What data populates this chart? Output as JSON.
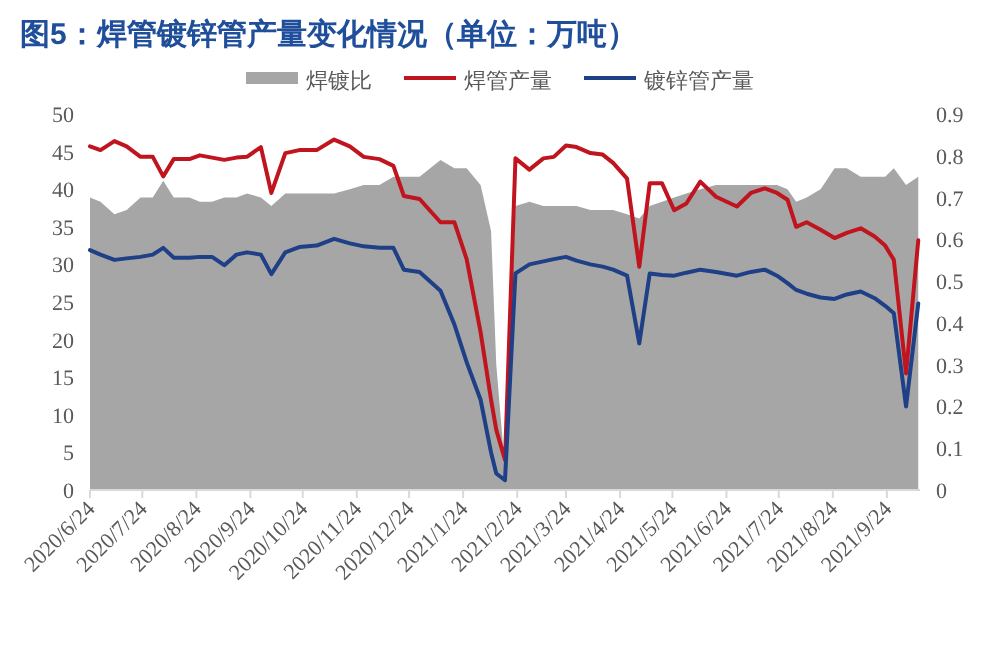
{
  "chart_data": {
    "type": "line",
    "title": "图5：焊管镀锌管产量变化情况（单位：万吨）",
    "legend": "top",
    "x": [
      "2020-06-24",
      "2020-06-30",
      "2020-07-08",
      "2020-07-15",
      "2020-07-23",
      "2020-07-30",
      "2020-08-05",
      "2020-08-11",
      "2020-08-20",
      "2020-08-26",
      "2020-09-02",
      "2020-09-09",
      "2020-09-16",
      "2020-09-22",
      "2020-09-30",
      "2020-10-06",
      "2020-10-14",
      "2020-10-22",
      "2020-11-01",
      "2020-11-11",
      "2020-11-20",
      "2020-11-28",
      "2020-12-07",
      "2020-12-15",
      "2020-12-21",
      "2020-12-30",
      "2021-01-11",
      "2021-01-19",
      "2021-01-26",
      "2021-02-03",
      "2021-02-09",
      "2021-02-12",
      "2021-02-17",
      "2021-02-23",
      "2021-03-03",
      "2021-03-11",
      "2021-03-17",
      "2021-03-24",
      "2021-03-30",
      "2021-04-07",
      "2021-04-14",
      "2021-04-20",
      "2021-04-28",
      "2021-05-05",
      "2021-05-11",
      "2021-05-18",
      "2021-05-25",
      "2021-06-01",
      "2021-06-09",
      "2021-06-18",
      "2021-06-30",
      "2021-07-08",
      "2021-07-16",
      "2021-07-23",
      "2021-07-29",
      "2021-08-03",
      "2021-08-09",
      "2021-08-17",
      "2021-08-25",
      "2021-09-01",
      "2021-09-09",
      "2021-09-17",
      "2021-09-23",
      "2021-09-28",
      "2021-10-05",
      "2021-10-12"
    ],
    "series": [
      {
        "name": "焊镀比",
        "type": "area",
        "axis": "y2",
        "color": "#a6a6a6",
        "values": [
          0.7,
          0.69,
          0.66,
          0.67,
          0.7,
          0.7,
          0.74,
          0.7,
          0.7,
          0.69,
          0.69,
          0.7,
          0.7,
          0.71,
          0.7,
          0.68,
          0.71,
          0.71,
          0.71,
          0.71,
          0.72,
          0.73,
          0.73,
          0.75,
          0.75,
          0.75,
          0.79,
          0.77,
          0.77,
          0.73,
          0.62,
          0.3,
          0.05,
          0.68,
          0.69,
          0.68,
          0.68,
          0.68,
          0.68,
          0.67,
          0.67,
          0.67,
          0.66,
          0.65,
          0.68,
          0.69,
          0.7,
          0.71,
          0.72,
          0.73,
          0.73,
          0.73,
          0.73,
          0.73,
          0.72,
          0.69,
          0.7,
          0.72,
          0.77,
          0.77,
          0.75,
          0.75,
          0.75,
          0.77,
          0.73,
          0.75
        ]
      },
      {
        "name": "焊管产量",
        "type": "line",
        "color": "#c0141e",
        "values": [
          45.7,
          45.2,
          46.4,
          45.7,
          44.3,
          44.3,
          41.7,
          44.0,
          44.0,
          44.5,
          44.2,
          43.9,
          44.2,
          44.3,
          45.6,
          39.5,
          44.8,
          45.2,
          45.2,
          46.6,
          45.7,
          44.3,
          44.0,
          43.1,
          39.1,
          38.7,
          35.6,
          35.6,
          30.7,
          21,
          12,
          8,
          4,
          44.1,
          42.6,
          44.1,
          44.3,
          45.8,
          45.6,
          44.8,
          44.6,
          43.5,
          41.4,
          29.7,
          40.8,
          40.8,
          37.2,
          38.1,
          41.0,
          39.0,
          37.7,
          39.5,
          40.1,
          39.5,
          38.6,
          35.0,
          35.6,
          34.6,
          33.5,
          34.2,
          34.8,
          33.7,
          32.5,
          30.6,
          15.5,
          33.2
        ]
      },
      {
        "name": "镀锌管产量",
        "type": "line",
        "color": "#1f3f86",
        "values": [
          31.9,
          31.3,
          30.6,
          30.8,
          31.0,
          31.3,
          32.2,
          30.9,
          30.9,
          31.0,
          31.0,
          29.9,
          31.3,
          31.6,
          31.3,
          28.7,
          31.6,
          32.3,
          32.5,
          33.4,
          32.8,
          32.4,
          32.2,
          32.2,
          29.3,
          29.0,
          26.5,
          22,
          17,
          12,
          5,
          2.2,
          1.3,
          28.8,
          30.0,
          30.4,
          30.7,
          31.0,
          30.5,
          30.0,
          29.7,
          29.3,
          28.5,
          19.5,
          28.8,
          28.6,
          28.5,
          28.9,
          29.3,
          29.0,
          28.5,
          29.0,
          29.3,
          28.5,
          27.5,
          26.6,
          26.1,
          25.6,
          25.4,
          26.0,
          26.4,
          25.5,
          24.5,
          23.5,
          11.1,
          24.8
        ]
      }
    ],
    "xlim": [
      "2020-06-24",
      "2021-10-13"
    ],
    "xticks": [
      {
        "value": "2020-06-24",
        "label": "2020/6/24"
      },
      {
        "value": "2020-07-24",
        "label": "2020/7/24"
      },
      {
        "value": "2020-08-24",
        "label": "2020/8/24"
      },
      {
        "value": "2020-09-24",
        "label": "2020/9/24"
      },
      {
        "value": "2020-10-24",
        "label": "2020/10/24"
      },
      {
        "value": "2020-11-24",
        "label": "2020/11/24"
      },
      {
        "value": "2020-12-24",
        "label": "2020/12/24"
      },
      {
        "value": "2021-01-24",
        "label": "2021/1/24"
      },
      {
        "value": "2021-02-24",
        "label": "2021/2/24"
      },
      {
        "value": "2021-03-24",
        "label": "2021/3/24"
      },
      {
        "value": "2021-04-24",
        "label": "2021/4/24"
      },
      {
        "value": "2021-05-24",
        "label": "2021/5/24"
      },
      {
        "value": "2021-06-24",
        "label": "2021/6/24"
      },
      {
        "value": "2021-07-24",
        "label": "2021/7/24"
      },
      {
        "value": "2021-08-24",
        "label": "2021/8/24"
      },
      {
        "value": "2021-09-24",
        "label": "2021/9/24"
      }
    ],
    "ylim": [
      0,
      50
    ],
    "yticks": [
      0,
      5,
      10,
      15,
      20,
      25,
      30,
      35,
      40,
      45,
      50
    ],
    "y2lim": [
      0,
      0.9
    ],
    "y2ticks": [
      0,
      0.1,
      0.2,
      0.3,
      0.4,
      0.5,
      0.6,
      0.7,
      0.8,
      0.9
    ]
  }
}
